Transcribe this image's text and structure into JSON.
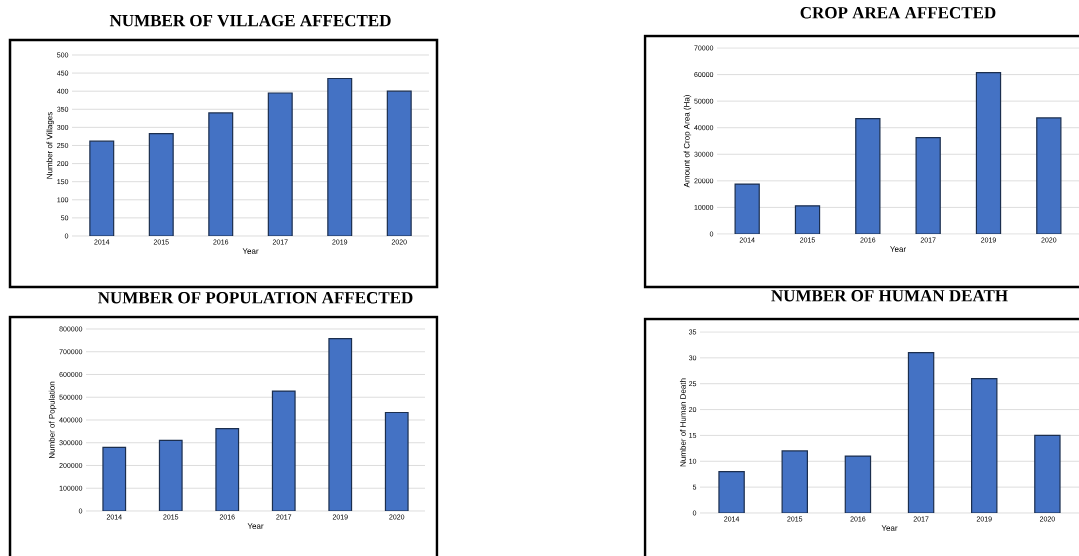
{
  "chart_data": [
    {
      "type": "bar",
      "title": "NUMBER OF VILLAGE AFFECTED",
      "xlabel": "Year",
      "ylabel": "Number of Villages",
      "categories": [
        "2014",
        "2015",
        "2016",
        "2017",
        "2019",
        "2020"
      ],
      "values": [
        262,
        283,
        340,
        395,
        435,
        400
      ],
      "color": "#4472c4",
      "ylim": [
        0,
        500
      ],
      "yticks": [
        0,
        50,
        100,
        150,
        200,
        250,
        300,
        350,
        400,
        450,
        500
      ],
      "grid": "y"
    },
    {
      "type": "bar",
      "title": "CROP  AREA  AFFECTED",
      "xlabel": "Year",
      "ylabel": "Amount of Crop Area (Ha)",
      "categories": [
        "2014",
        "2015",
        "2016",
        "2017",
        "2019",
        "2020"
      ],
      "values": [
        18800,
        10600,
        43400,
        36300,
        60700,
        43700
      ],
      "color": "#4472c4",
      "ylim": [
        0,
        70000
      ],
      "yticks": [
        0,
        10000,
        20000,
        30000,
        40000,
        50000,
        60000,
        70000
      ],
      "grid": "y"
    },
    {
      "type": "bar",
      "title": "NUMBER OF POPULATION AFFECTED",
      "xlabel": "Year",
      "ylabel": "Number of Population",
      "categories": [
        "2014",
        "2015",
        "2016",
        "2017",
        "2019",
        "2020"
      ],
      "values": [
        280000,
        310000,
        362000,
        527000,
        758000,
        433000
      ],
      "color": "#4472c4",
      "ylim": [
        0,
        800000
      ],
      "yticks": [
        0,
        100000,
        200000,
        300000,
        400000,
        500000,
        600000,
        700000,
        800000
      ],
      "grid": "y"
    },
    {
      "type": "bar",
      "title": "NUMBER OF HUMAN DEATH",
      "xlabel": "Year",
      "ylabel": "Number of Human Death",
      "categories": [
        "2014",
        "2015",
        "2016",
        "2017",
        "2019",
        "2020"
      ],
      "values": [
        8,
        12,
        11,
        31,
        26,
        15
      ],
      "color": "#4472c4",
      "ylim": [
        0,
        35
      ],
      "yticks": [
        0,
        5,
        10,
        15,
        20,
        25,
        30,
        35
      ],
      "grid": "y"
    }
  ]
}
